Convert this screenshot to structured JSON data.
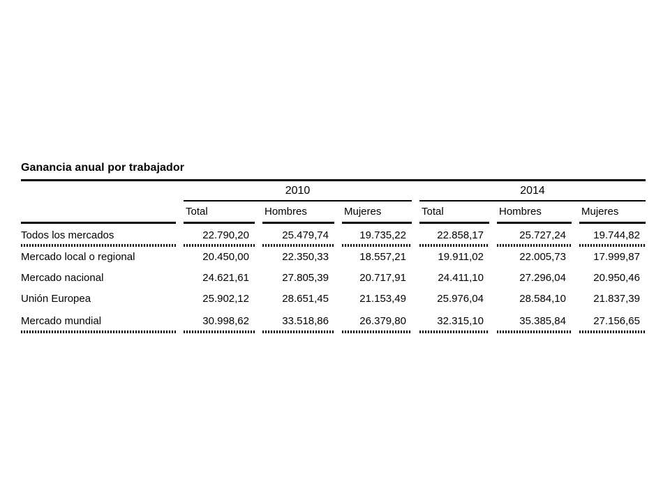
{
  "title": "Ganancia anual por trabajador",
  "colors": {
    "background": "#ffffff",
    "text": "#000000",
    "rule": "#000000"
  },
  "table": {
    "year_groups": [
      {
        "label": "2010"
      },
      {
        "label": "2014"
      }
    ],
    "columns": [
      "Total",
      "Hombres",
      "Mujeres",
      "Total",
      "Hombres",
      "Mujeres"
    ],
    "rows": [
      {
        "label": "Todos los mercados",
        "values": [
          "22.790,20",
          "25.479,74",
          "19.735,22",
          "22.858,17",
          "25.727,24",
          "19.744,82"
        ]
      },
      {
        "label": "Mercado local o regional",
        "values": [
          "20.450,00",
          "22.350,33",
          "18.557,21",
          "19.911,02",
          "22.005,73",
          "17.999,87"
        ]
      },
      {
        "label": "Mercado nacional",
        "values": [
          "24.621,61",
          "27.805,39",
          "20.717,91",
          "24.411,10",
          "27.296,04",
          "20.950,46"
        ]
      },
      {
        "label": "Unión Europea",
        "values": [
          "25.902,12",
          "28.651,45",
          "21.153,49",
          "25.976,04",
          "28.584,10",
          "21.837,39"
        ]
      },
      {
        "label": "Mercado mundial",
        "values": [
          "30.998,62",
          "33.518,86",
          "26.379,80",
          "32.315,10",
          "35.385,84",
          "27.156,65"
        ]
      }
    ]
  },
  "chart_data": {
    "type": "table",
    "title": "Ganancia anual por trabajador",
    "categories": [
      "Todos los mercados",
      "Mercado local o regional",
      "Mercado nacional",
      "Unión Europea",
      "Mercado mundial"
    ],
    "column_groups": [
      "2010",
      "2014"
    ],
    "columns_per_group": [
      "Total",
      "Hombres",
      "Mujeres"
    ],
    "series": [
      {
        "name": "2010 Total",
        "values": [
          22790.2,
          20450.0,
          24621.61,
          25902.12,
          30998.62
        ]
      },
      {
        "name": "2010 Hombres",
        "values": [
          25479.74,
          22350.33,
          27805.39,
          28651.45,
          33518.86
        ]
      },
      {
        "name": "2010 Mujeres",
        "values": [
          19735.22,
          18557.21,
          20717.91,
          21153.49,
          26379.8
        ]
      },
      {
        "name": "2014 Total",
        "values": [
          22858.17,
          19911.02,
          24411.1,
          25976.04,
          32315.1
        ]
      },
      {
        "name": "2014 Hombres",
        "values": [
          25727.24,
          22005.73,
          27296.04,
          28584.1,
          35385.84
        ]
      },
      {
        "name": "2014 Mujeres",
        "values": [
          19744.82,
          17999.87,
          20950.46,
          21837.39,
          27156.65
        ]
      }
    ]
  }
}
